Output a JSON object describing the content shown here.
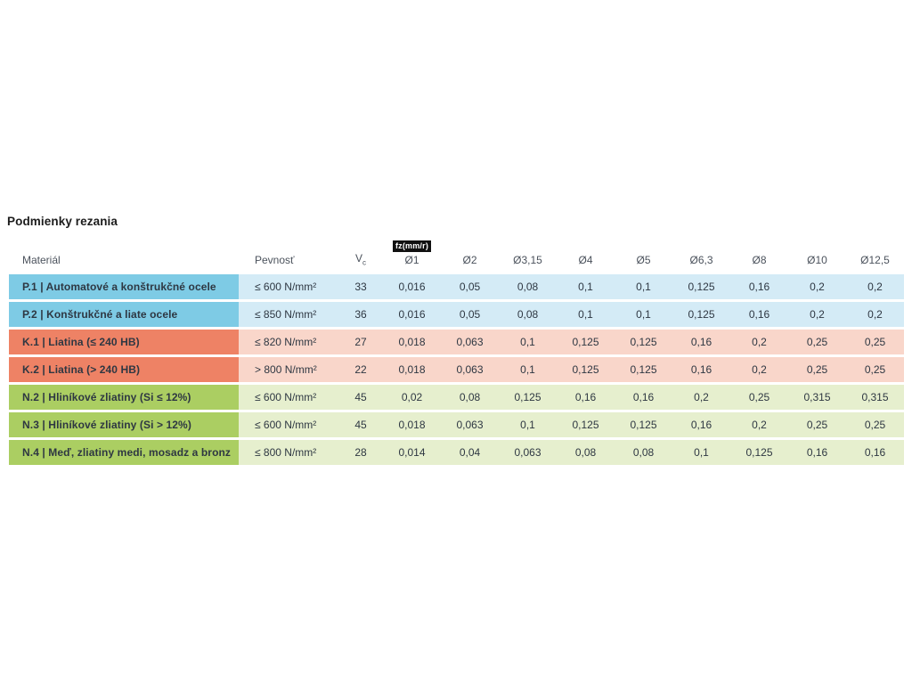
{
  "section": {
    "title": "Podmienky rezania"
  },
  "colors": {
    "group_p_dark": "#7ecbe5",
    "group_p_light": "#d4ebf6",
    "group_k_dark": "#ee8265",
    "group_k_light": "#f9d6ca",
    "group_n_dark": "#abce62",
    "group_n_light": "#e6efce",
    "badge_bg": "#111111",
    "badge_text": "#ffffff",
    "header_text": "#4b525c",
    "cell_text": "#2e3742"
  },
  "table": {
    "header": {
      "material": "Materiál",
      "pevnost": "Pevnosť",
      "vc_base": "V",
      "vc_sub": "c",
      "fz_badge": "fz(mm/r)",
      "diameters": [
        "Ø1",
        "Ø2",
        "Ø3,15",
        "Ø4",
        "Ø5",
        "Ø6,3",
        "Ø8",
        "Ø10",
        "Ø12,5"
      ]
    },
    "rows": [
      {
        "group": "P",
        "material": "P.1 | Automatové a konštrukčné ocele",
        "pevnost": "≤ 600 N/mm²",
        "vc": "33",
        "values": [
          "0,016",
          "0,05",
          "0,08",
          "0,1",
          "0,1",
          "0,125",
          "0,16",
          "0,2",
          "0,2"
        ]
      },
      {
        "group": "P",
        "material": "P.2 | Konštrukčné a liate ocele",
        "pevnost": "≤ 850 N/mm²",
        "vc": "36",
        "values": [
          "0,016",
          "0,05",
          "0,08",
          "0,1",
          "0,1",
          "0,125",
          "0,16",
          "0,2",
          "0,2"
        ]
      },
      {
        "group": "K",
        "material": "K.1 | Liatina (≤ 240 HB)",
        "pevnost": "≤ 820 N/mm²",
        "vc": "27",
        "values": [
          "0,018",
          "0,063",
          "0,1",
          "0,125",
          "0,125",
          "0,16",
          "0,2",
          "0,25",
          "0,25"
        ]
      },
      {
        "group": "K",
        "material": "K.2 | Liatina (> 240 HB)",
        "pevnost": "> 800 N/mm²",
        "vc": "22",
        "values": [
          "0,018",
          "0,063",
          "0,1",
          "0,125",
          "0,125",
          "0,16",
          "0,2",
          "0,25",
          "0,25"
        ]
      },
      {
        "group": "N",
        "material": "N.2 | Hliníkové zliatiny (Si ≤ 12%)",
        "pevnost": "≤ 600 N/mm²",
        "vc": "45",
        "values": [
          "0,02",
          "0,08",
          "0,125",
          "0,16",
          "0,16",
          "0,2",
          "0,25",
          "0,315",
          "0,315"
        ]
      },
      {
        "group": "N",
        "material": "N.3 | Hliníkové zliatiny (Si > 12%)",
        "pevnost": "≤ 600 N/mm²",
        "vc": "45",
        "values": [
          "0,018",
          "0,063",
          "0,1",
          "0,125",
          "0,125",
          "0,16",
          "0,2",
          "0,25",
          "0,25"
        ]
      },
      {
        "group": "N",
        "material": "N.4 | Meď, zliatiny medi, mosadz a bronz",
        "pevnost": "≤ 800 N/mm²",
        "vc": "28",
        "values": [
          "0,014",
          "0,04",
          "0,063",
          "0,08",
          "0,08",
          "0,1",
          "0,125",
          "0,16",
          "0,16"
        ]
      }
    ]
  }
}
